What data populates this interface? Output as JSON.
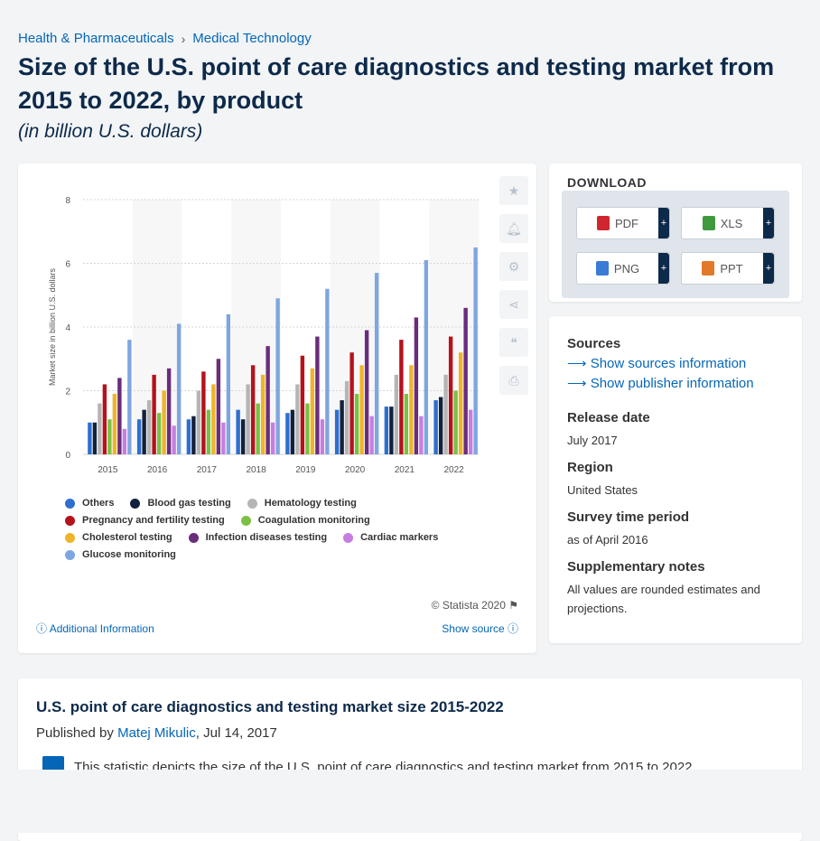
{
  "breadcrumb": [
    "Health & Pharmaceuticals",
    "Medical Technology"
  ],
  "title": "Size of the U.S. point of care diagnostics and testing market from 2015 to 2022, by product",
  "subtitle": "(in billion U.S. dollars)",
  "copyright": "© Statista 2020",
  "additional_info": "Additional Information",
  "show_source": "Show source",
  "download": {
    "title": "DOWNLOAD",
    "buttons": [
      {
        "label": "PDF",
        "color": "#d0262e"
      },
      {
        "label": "XLS",
        "color": "#3f9a3f"
      },
      {
        "label": "PNG",
        "color": "#3a7bd5"
      },
      {
        "label": "PPT",
        "color": "#e2782a"
      }
    ]
  },
  "meta": {
    "sources_h": "Sources",
    "sources_link": "Show sources information",
    "publisher_link": "Show publisher information",
    "release_h": "Release date",
    "release_v": "July 2017",
    "region_h": "Region",
    "region_v": "United States",
    "survey_h": "Survey time period",
    "survey_v": "as of April 2016",
    "supp_h": "Supplementary notes",
    "supp_v": "All values are rounded estimates and projections."
  },
  "bottom": {
    "title": "U.S. point of care diagnostics and testing market size 2015-2022",
    "published_prefix": "Published by",
    "author": "Matej Mikulic",
    "date": ", Jul 14, 2017",
    "text": "This statistic depicts the size of the U.S. point of care diagnostics and testing market from 2015 to 2022."
  },
  "chart_data": {
    "type": "bar",
    "ylabel": "Market size in billion U.S. dollars",
    "ylim": [
      0,
      8
    ],
    "yticks": [
      0,
      2,
      4,
      6,
      8
    ],
    "legend_placement": "bottom",
    "grid": true,
    "categories": [
      "2015",
      "2016",
      "2017",
      "2018",
      "2019",
      "2020",
      "2021",
      "2022"
    ],
    "series": [
      {
        "name": "Others",
        "color": "#2d6fce",
        "values": [
          1.0,
          1.1,
          1.1,
          1.4,
          1.3,
          1.4,
          1.5,
          1.7
        ]
      },
      {
        "name": "Blood gas testing",
        "color": "#14213d",
        "values": [
          1.0,
          1.4,
          1.2,
          1.1,
          1.4,
          1.7,
          1.5,
          1.8
        ]
      },
      {
        "name": "Hematology testing",
        "color": "#b5b5b5",
        "values": [
          1.6,
          1.7,
          2.0,
          2.2,
          2.2,
          2.3,
          2.5,
          2.5
        ]
      },
      {
        "name": "Pregnancy and fertility testing",
        "color": "#b5121b",
        "values": [
          2.2,
          2.5,
          2.6,
          2.8,
          3.1,
          3.2,
          3.6,
          3.7
        ]
      },
      {
        "name": "Coagulation monitoring",
        "color": "#7ac143",
        "values": [
          1.1,
          1.3,
          1.4,
          1.6,
          1.6,
          1.9,
          1.9,
          2.0
        ]
      },
      {
        "name": "Cholesterol testing",
        "color": "#f0b429",
        "values": [
          1.9,
          2.0,
          2.2,
          2.5,
          2.7,
          2.8,
          2.8,
          3.2
        ]
      },
      {
        "name": "Infection diseases testing",
        "color": "#6a2c7c",
        "values": [
          2.4,
          2.7,
          3.0,
          3.4,
          3.7,
          3.9,
          4.3,
          4.6
        ]
      },
      {
        "name": "Cardiac markers",
        "color": "#c77ee0",
        "values": [
          0.8,
          0.9,
          1.0,
          1.0,
          1.1,
          1.2,
          1.2,
          1.4
        ]
      },
      {
        "name": "Glucose monitoring",
        "color": "#7ea6e0",
        "values": [
          3.6,
          4.1,
          4.4,
          4.9,
          5.2,
          5.7,
          6.1,
          6.5
        ]
      }
    ]
  }
}
